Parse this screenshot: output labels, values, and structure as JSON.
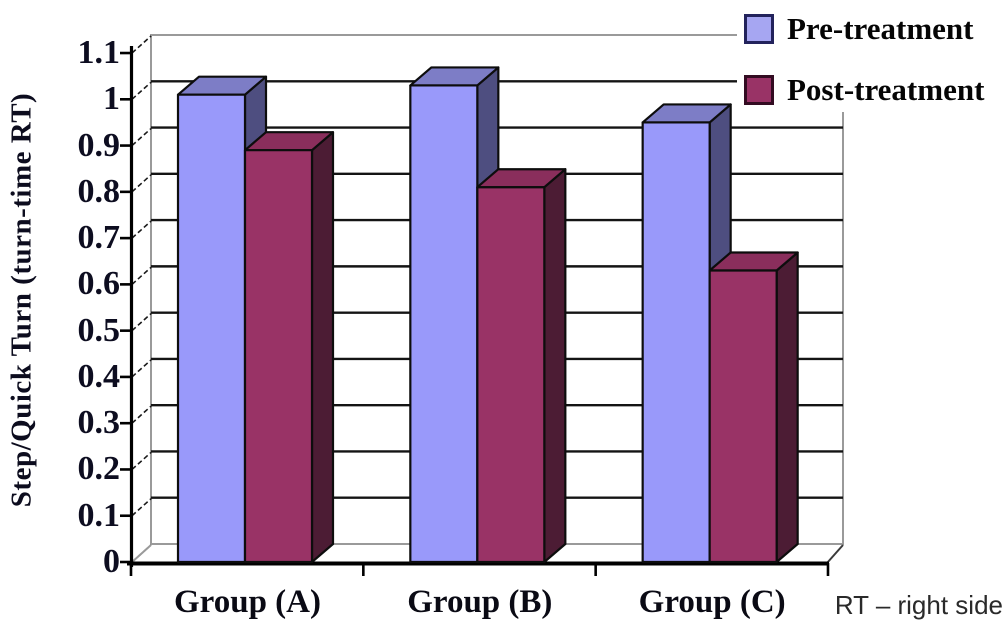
{
  "figure": {
    "background": "#ffffff",
    "note": "RT – right side"
  },
  "chart_data": {
    "type": "bar",
    "variant": "3d-clustered-column",
    "title": "",
    "xlabel": "",
    "ylabel": "Step/Quick Turn (turn-time RT)",
    "categories": [
      "Group (A)",
      "Group (B)",
      "Group (C)"
    ],
    "series": [
      {
        "name": "Pre-treatment",
        "values": [
          1.01,
          1.03,
          0.95
        ],
        "front_color": "#9999fa",
        "top_color": "#7d7dc6",
        "side_color": "#4e4e80",
        "legend_swatch_color": "#a6a6f2"
      },
      {
        "name": "Post-treatment",
        "values": [
          0.89,
          0.81,
          0.63
        ],
        "front_color": "#993366",
        "top_color": "#8a2e5c",
        "side_color": "#4c1c34",
        "legend_swatch_color": "#993366"
      }
    ],
    "ylim": [
      0,
      1.1
    ],
    "y_ticks": [
      0,
      0.1,
      0.2,
      0.3,
      0.4,
      0.5,
      0.6,
      0.7,
      0.8,
      0.9,
      1,
      1.1
    ],
    "y_tick_labels": [
      "0",
      "0.1",
      "0.2",
      "0.3",
      "0.4",
      "0.5",
      "0.6",
      "0.7",
      "0.8",
      "0.9",
      "1",
      "1.1"
    ],
    "grid": true,
    "legend_position": "top-right",
    "axis_color": "#000000",
    "gridline_color": "#141414",
    "wall_edge_color": "#9a9a9a"
  }
}
